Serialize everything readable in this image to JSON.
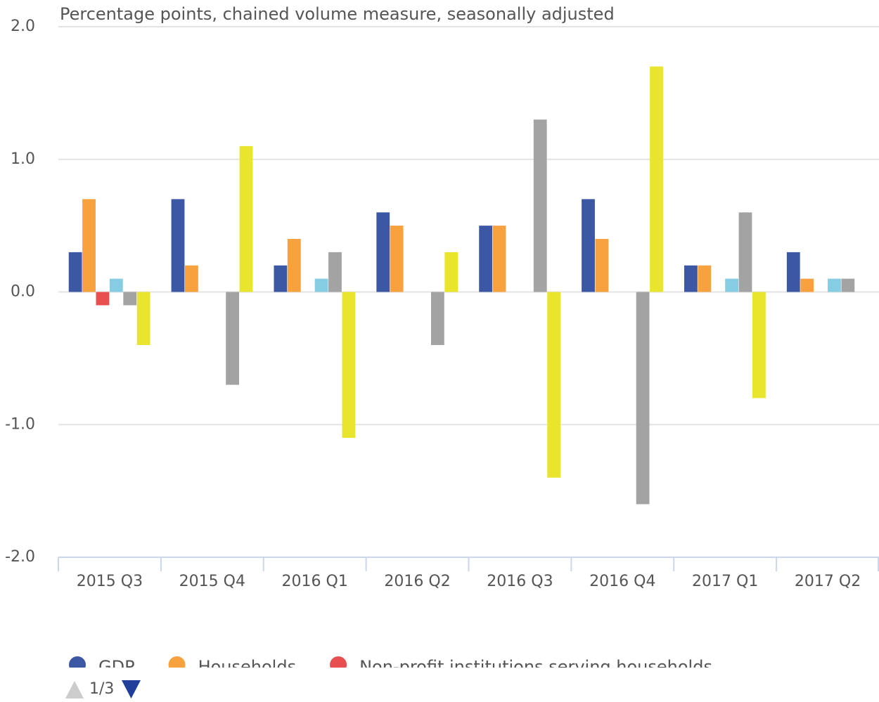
{
  "chart_data": {
    "type": "bar",
    "subtitle": "Percentage points, chained volume measure, seasonally adjusted",
    "categories": [
      "2015 Q3",
      "2015 Q4",
      "2016 Q1",
      "2016 Q2",
      "2016 Q3",
      "2016 Q4",
      "2017 Q1",
      "2017 Q2"
    ],
    "series": [
      {
        "name": "GDP",
        "color": "#3c57a3",
        "values": [
          0.3,
          0.7,
          0.2,
          0.6,
          0.5,
          0.7,
          0.2,
          0.3
        ]
      },
      {
        "name": "Households",
        "color": "#f7a13f",
        "values": [
          0.7,
          0.2,
          0.4,
          0.5,
          0.5,
          0.4,
          0.2,
          0.1
        ]
      },
      {
        "name": "Non-profit institutions serving households",
        "color": "#e84f50",
        "values": [
          -0.1,
          0,
          0,
          0,
          0,
          0,
          0,
          0
        ]
      },
      {
        "color": "#86cde3",
        "values": [
          0.1,
          0,
          0.1,
          0,
          0,
          0,
          0.1,
          0.1
        ]
      },
      {
        "color": "#a3a3a3",
        "values": [
          -0.1,
          -0.7,
          0.3,
          -0.4,
          1.3,
          -1.6,
          0.6,
          0.1
        ]
      },
      {
        "color": "#e9e52d",
        "values": [
          -0.4,
          1.1,
          -1.1,
          0.3,
          -1.4,
          1.7,
          -0.8,
          0
        ]
      }
    ],
    "ylim": [
      -2,
      2
    ],
    "yticks": [
      {
        "value": -2,
        "label": "-2.0"
      },
      {
        "value": -1,
        "label": "-1.0"
      },
      {
        "value": 0,
        "label": "0.0"
      },
      {
        "value": 1,
        "label": "1.0"
      },
      {
        "value": 2,
        "label": "2.0"
      }
    ],
    "grid": true,
    "legend_pager": "1/3"
  }
}
